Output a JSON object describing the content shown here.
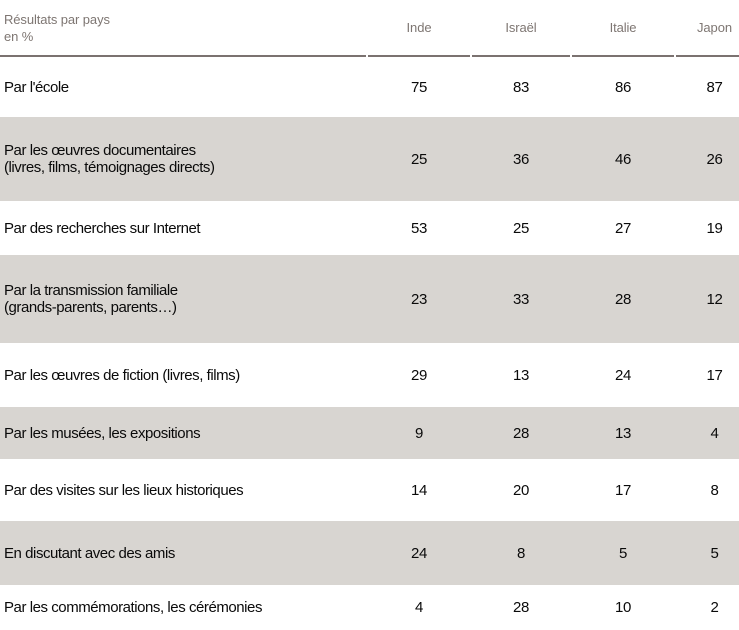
{
  "chart_data": {
    "type": "table",
    "title": "Résultats par pays",
    "unit_note": "en %",
    "columns": [
      "Inde",
      "Israël",
      "Italie",
      "Japon"
    ],
    "rows": [
      {
        "label": "Par l'école",
        "values": [
          75,
          83,
          86,
          87
        ]
      },
      {
        "label": "Par les œuvres documentaires",
        "sublabel": "(livres, films, témoignages directs)",
        "values": [
          25,
          36,
          46,
          26
        ]
      },
      {
        "label": "Par des recherches sur Internet",
        "values": [
          53,
          25,
          27,
          19
        ]
      },
      {
        "label": "Par la transmission familiale",
        "sublabel": "(grands-parents, parents…)",
        "values": [
          23,
          33,
          28,
          12
        ]
      },
      {
        "label": "Par les œuvres de fiction (livres, films)",
        "values": [
          29,
          13,
          24,
          17
        ]
      },
      {
        "label": "Par les musées, les expositions",
        "values": [
          9,
          28,
          13,
          4
        ]
      },
      {
        "label": "Par des visites sur les lieux historiques",
        "values": [
          14,
          20,
          17,
          8
        ]
      },
      {
        "label": "En discutant avec des amis",
        "values": [
          24,
          8,
          5,
          5
        ]
      },
      {
        "label": "Par les commémorations, les cérémonies",
        "values": [
          4,
          28,
          10,
          2
        ]
      }
    ]
  },
  "colors": {
    "row_shade": "#d8d5d1",
    "header_rule": "#7b7270",
    "header_text": "#7e7672",
    "body_text": "#0a0a0a"
  }
}
